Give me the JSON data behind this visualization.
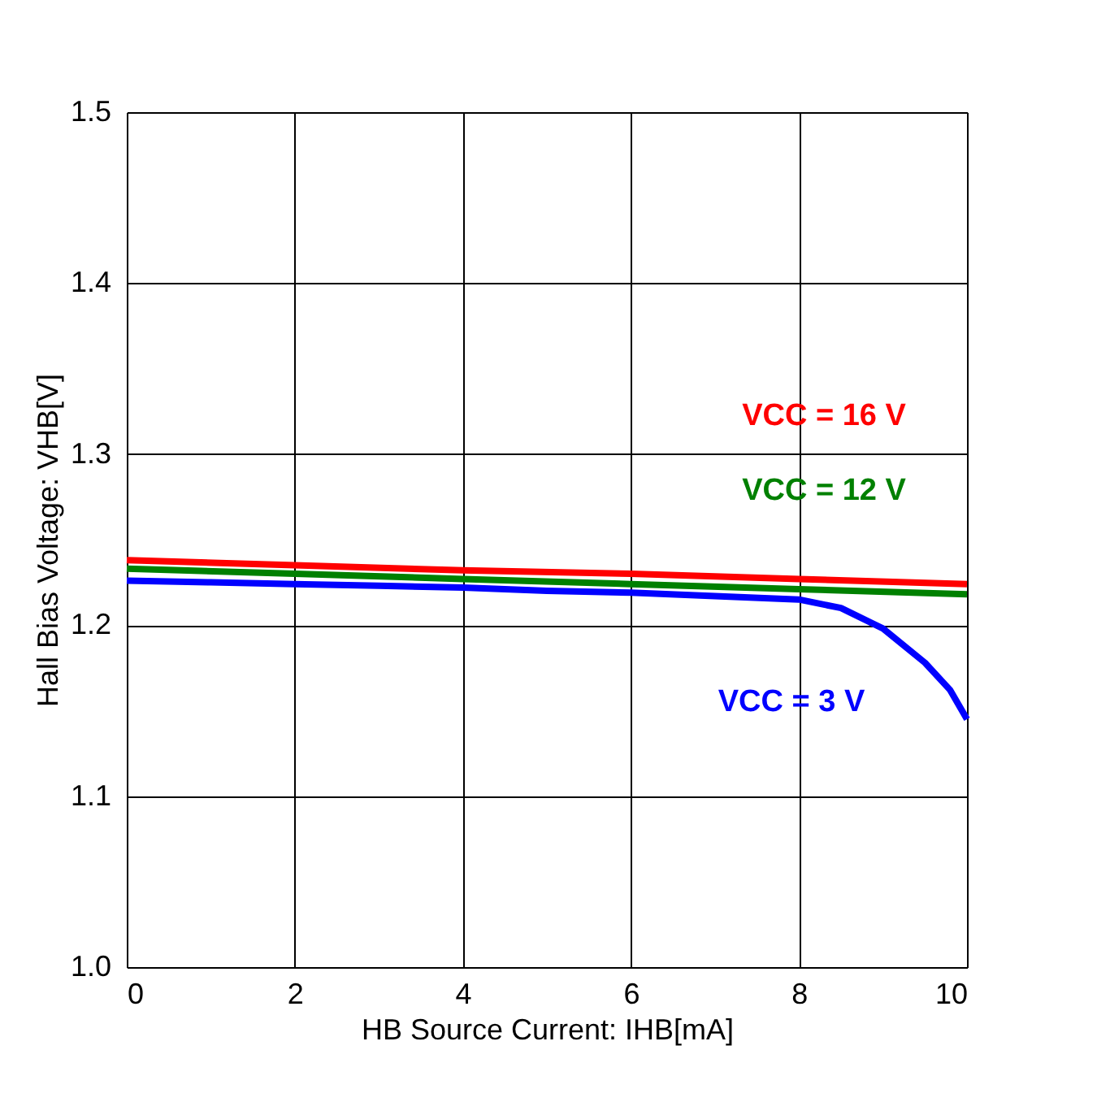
{
  "chart_data": {
    "type": "line",
    "xlabel": "HB Source Current: IHB[mA]",
    "ylabel": "Hall Bias Voltage: VHB[V]",
    "xlim": [
      0,
      10
    ],
    "ylim": [
      1.0,
      1.5
    ],
    "xticks": [
      0,
      2,
      4,
      6,
      8,
      10
    ],
    "yticks": [
      {
        "value": 1.0,
        "label": "1.0"
      },
      {
        "value": 1.1,
        "label": "1.1"
      },
      {
        "value": 1.2,
        "label": "1.2"
      },
      {
        "value": 1.3,
        "label": "1.3"
      },
      {
        "value": 1.4,
        "label": "1.4"
      },
      {
        "value": 1.5,
        "label": "1.5"
      }
    ],
    "grid": true,
    "marker": "none",
    "line_style": "solid",
    "series": [
      {
        "name": "VCC =  16  V",
        "color": "#ff0000",
        "x": [
          0,
          2,
          4,
          6,
          8,
          10
        ],
        "values": [
          1.238,
          1.235,
          1.232,
          1.23,
          1.227,
          1.224
        ]
      },
      {
        "name": "VCC =  12  V",
        "color": "#008000",
        "x": [
          0,
          2,
          4,
          6,
          8,
          10
        ],
        "values": [
          1.233,
          1.23,
          1.227,
          1.224,
          1.221,
          1.218
        ]
      },
      {
        "name": "VCC =  3  V",
        "color": "#0000ff",
        "x": [
          0,
          1,
          2,
          3,
          4,
          5,
          6,
          7,
          8,
          8.5,
          9,
          9.5,
          9.8,
          10
        ],
        "values": [
          1.226,
          1.225,
          1.224,
          1.223,
          1.222,
          1.22,
          1.219,
          1.217,
          1.215,
          1.21,
          1.198,
          1.178,
          1.162,
          1.145
        ]
      }
    ]
  }
}
